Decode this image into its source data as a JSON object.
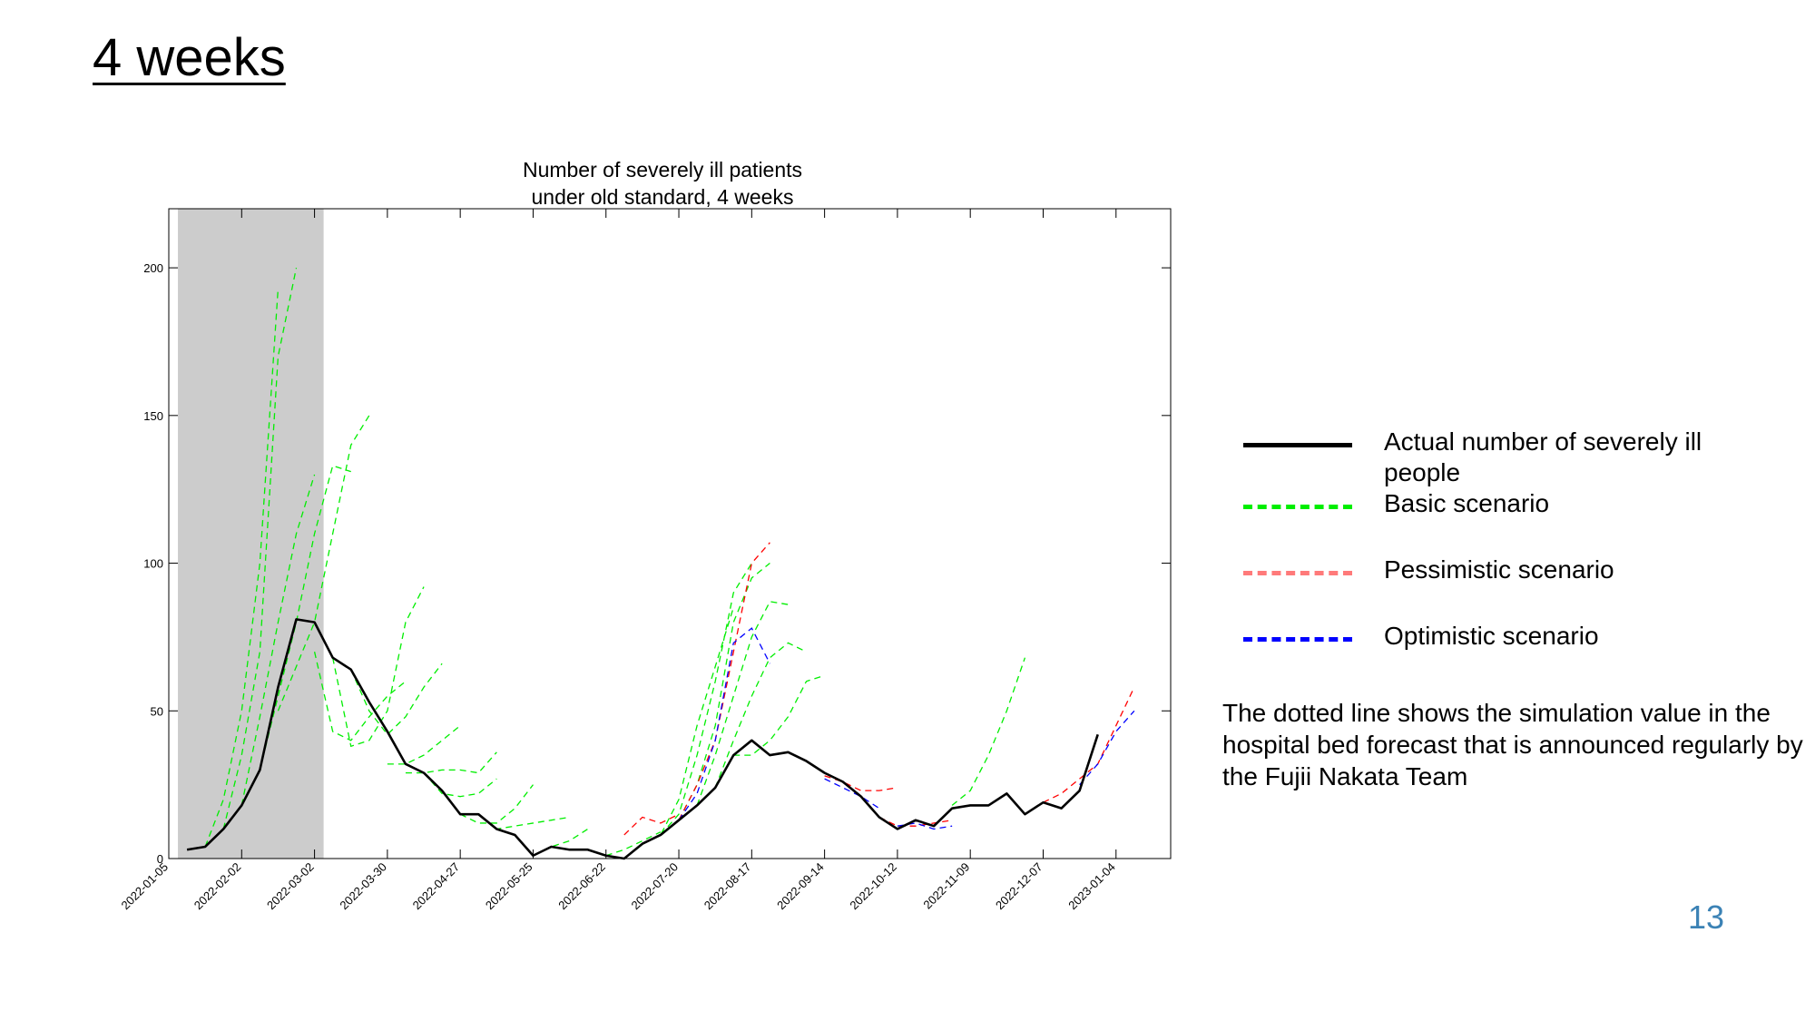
{
  "slide": {
    "title": "4 weeks",
    "page_number": "13"
  },
  "note": "The dotted line shows the simulation value in the hospital bed forecast that is announced regularly by the Fujii Nakata Team",
  "legend": [
    {
      "label": "Actual number of severely ill people",
      "color": "#000000",
      "style": "solid"
    },
    {
      "label": "Basic scenario",
      "color": "#00ee00",
      "style": "dashed"
    },
    {
      "label": "Pessimistic scenario",
      "color": "#ff7a7a",
      "style": "dashed"
    },
    {
      "label": "Optimistic scenario",
      "color": "#0000ff",
      "style": "dashed"
    }
  ],
  "chart_data": {
    "type": "line",
    "title": "Number of severely ill patients\nunder old standard, 4 weeks",
    "title_lines": [
      "Number of severely ill patients",
      "under old standard, 4 weeks"
    ],
    "xlabel": "",
    "ylabel": "",
    "ylim": [
      0,
      220
    ],
    "yticks": [
      0,
      50,
      100,
      150,
      200
    ],
    "xrange_week": [
      0,
      55
    ],
    "xticks": [
      {
        "week": 0,
        "label": "2022-01-05"
      },
      {
        "week": 4,
        "label": "2022-02-02"
      },
      {
        "week": 8,
        "label": "2022-03-02"
      },
      {
        "week": 12,
        "label": "2022-03-30"
      },
      {
        "week": 16,
        "label": "2022-04-27"
      },
      {
        "week": 20,
        "label": "2022-05-25"
      },
      {
        "week": 24,
        "label": "2022-06-22"
      },
      {
        "week": 28,
        "label": "2022-07-20"
      },
      {
        "week": 32,
        "label": "2022-08-17"
      },
      {
        "week": 36,
        "label": "2022-09-14"
      },
      {
        "week": 40,
        "label": "2022-10-12"
      },
      {
        "week": 44,
        "label": "2022-11-09"
      },
      {
        "week": 48,
        "label": "2022-12-07"
      },
      {
        "week": 52,
        "label": "2023-01-04"
      }
    ],
    "shaded_region_week": [
      0.5,
      8.5
    ],
    "grid": false,
    "legend_position": "right",
    "actual": {
      "color": "#000000",
      "x": [
        1,
        2,
        3,
        4,
        5,
        6,
        7,
        8,
        9,
        10,
        11,
        12,
        13,
        14,
        15,
        16,
        17,
        18,
        19,
        20,
        21,
        22,
        23,
        24,
        25,
        26,
        27,
        28,
        29,
        30,
        31,
        32,
        33,
        34,
        35,
        36,
        37,
        38,
        39,
        40,
        41,
        42,
        43,
        44,
        45,
        46,
        47,
        48,
        49,
        50,
        51
      ],
      "y": [
        3,
        4,
        10,
        18,
        30,
        58,
        81,
        80,
        68,
        64,
        53,
        43,
        32,
        29,
        23,
        15,
        15,
        10,
        8,
        1,
        4,
        3,
        3,
        1,
        0,
        5,
        8,
        13,
        18,
        24,
        35,
        40,
        35,
        36,
        33,
        29,
        26,
        21,
        14,
        10,
        13,
        11,
        17,
        18,
        18,
        22,
        15,
        19,
        17,
        23,
        42
      ]
    },
    "basic": {
      "color": "#00ee00",
      "series": [
        {
          "x": [
            2,
            3,
            4,
            5,
            6
          ],
          "y": [
            4,
            20,
            50,
            100,
            193
          ]
        },
        {
          "x": [
            3,
            4,
            5,
            6,
            7
          ],
          "y": [
            10,
            35,
            70,
            170,
            200
          ]
        },
        {
          "x": [
            4,
            5,
            6,
            7,
            8
          ],
          "y": [
            18,
            48,
            80,
            110,
            130
          ]
        },
        {
          "x": [
            5,
            6,
            7,
            8,
            9,
            10
          ],
          "y": [
            30,
            55,
            80,
            110,
            133,
            131
          ]
        },
        {
          "x": [
            6,
            7,
            8,
            9,
            10,
            11
          ],
          "y": [
            50,
            65,
            80,
            110,
            140,
            150
          ]
        },
        {
          "x": [
            8,
            9,
            10,
            11,
            12,
            13
          ],
          "y": [
            70,
            43,
            40,
            48,
            55,
            60
          ]
        },
        {
          "x": [
            9,
            10,
            11,
            12,
            13,
            14
          ],
          "y": [
            68,
            38,
            40,
            50,
            80,
            92
          ]
        },
        {
          "x": [
            10,
            11,
            12,
            13,
            14,
            15
          ],
          "y": [
            64,
            50,
            42,
            48,
            58,
            66
          ]
        },
        {
          "x": [
            12,
            13,
            14,
            15,
            16
          ],
          "y": [
            32,
            32,
            35,
            40,
            45
          ]
        },
        {
          "x": [
            13,
            14,
            15,
            16,
            17,
            18
          ],
          "y": [
            29,
            29,
            30,
            30,
            29,
            36
          ]
        },
        {
          "x": [
            14,
            15,
            16,
            17,
            18
          ],
          "y": [
            29,
            22,
            21,
            22,
            27
          ]
        },
        {
          "x": [
            16,
            17,
            18,
            19,
            20
          ],
          "y": [
            15,
            12,
            12,
            17,
            25
          ]
        },
        {
          "x": [
            17,
            18,
            19,
            20,
            21,
            22
          ],
          "y": [
            15,
            10,
            11,
            12,
            13,
            14
          ]
        },
        {
          "x": [
            20,
            21,
            22,
            23
          ],
          "y": [
            1,
            4,
            6,
            10
          ]
        },
        {
          "x": [
            24,
            25,
            26,
            27
          ],
          "y": [
            1,
            3,
            6,
            9
          ]
        },
        {
          "x": [
            26,
            27,
            28,
            29,
            30,
            31
          ],
          "y": [
            5,
            8,
            20,
            45,
            65,
            85
          ]
        },
        {
          "x": [
            27,
            28,
            29,
            30,
            31,
            32
          ],
          "y": [
            8,
            15,
            35,
            60,
            90,
            100
          ]
        },
        {
          "x": [
            28,
            29,
            30,
            31,
            32,
            33
          ],
          "y": [
            13,
            25,
            45,
            80,
            95,
            100
          ]
        },
        {
          "x": [
            29,
            30,
            31,
            32,
            33,
            34
          ],
          "y": [
            18,
            35,
            55,
            75,
            87,
            86
          ]
        },
        {
          "x": [
            30,
            31,
            32,
            33,
            34,
            35
          ],
          "y": [
            24,
            40,
            55,
            68,
            73,
            70
          ]
        },
        {
          "x": [
            31,
            32,
            33,
            34,
            35,
            36
          ],
          "y": [
            35,
            35,
            40,
            48,
            60,
            62
          ]
        },
        {
          "x": [
            43,
            44,
            45,
            46,
            47
          ],
          "y": [
            18,
            23,
            35,
            50,
            68
          ]
        }
      ]
    },
    "pessimistic": {
      "color": "#ff0000",
      "series": [
        {
          "x": [
            25,
            26,
            27,
            28
          ],
          "y": [
            8,
            14,
            12,
            15
          ]
        },
        {
          "x": [
            28,
            29,
            30,
            31,
            32,
            33
          ],
          "y": [
            13,
            25,
            40,
            70,
            100,
            107
          ]
        },
        {
          "x": [
            36,
            37,
            38,
            39,
            40
          ],
          "y": [
            28,
            26,
            23,
            23,
            24
          ]
        },
        {
          "x": [
            39,
            40,
            41,
            42,
            43
          ],
          "y": [
            14,
            11,
            11,
            12,
            13
          ]
        },
        {
          "x": [
            48,
            49,
            50,
            51,
            52,
            53
          ],
          "y": [
            19,
            22,
            27,
            32,
            45,
            58
          ]
        }
      ]
    },
    "optimistic": {
      "color": "#0000ff",
      "series": [
        {
          "x": [
            28,
            29,
            30,
            31,
            32,
            33
          ],
          "y": [
            13,
            22,
            40,
            73,
            78,
            66
          ]
        },
        {
          "x": [
            36,
            37,
            38,
            39
          ],
          "y": [
            27,
            24,
            21,
            17
          ]
        },
        {
          "x": [
            40,
            41,
            42,
            43
          ],
          "y": [
            11,
            12,
            10,
            11
          ]
        },
        {
          "x": [
            50,
            51,
            52,
            53
          ],
          "y": [
            25,
            32,
            43,
            50
          ]
        }
      ]
    }
  }
}
